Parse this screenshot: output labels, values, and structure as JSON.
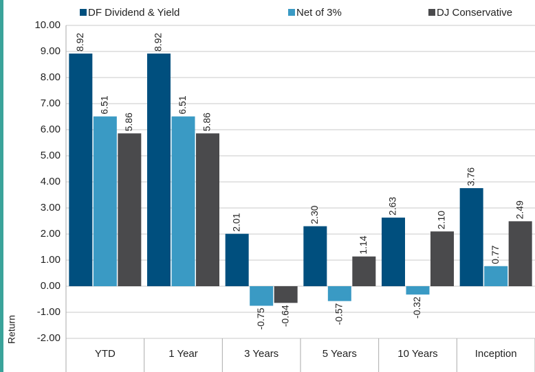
{
  "chart_data": {
    "type": "bar",
    "y_label": "Return",
    "categories": [
      "YTD",
      "1 Year",
      "3 Years",
      "5 Years",
      "10 Years",
      "Inception"
    ],
    "series": [
      {
        "name": "DF Dividend & Yield",
        "color": "#004f7e",
        "values": [
          8.92,
          8.92,
          2.01,
          2.3,
          2.63,
          3.76
        ],
        "value_labels": [
          "8.92",
          "8.92",
          "2.01",
          "2.30",
          "2.63",
          "3.76"
        ]
      },
      {
        "name": "Net of 3%",
        "color": "#3a9ac4",
        "values": [
          6.51,
          6.51,
          -0.75,
          -0.57,
          -0.32,
          0.77
        ],
        "value_labels": [
          "6.51",
          "6.51",
          "-0.75",
          "-0.57",
          "-0.32",
          "0.77"
        ]
      },
      {
        "name": "DJ Conservative",
        "color": "#4a4a4c",
        "values": [
          5.86,
          5.86,
          -0.64,
          1.14,
          2.1,
          2.49
        ],
        "value_labels": [
          "5.86",
          "5.86",
          "-0.64",
          "1.14",
          "2.10",
          "2.49"
        ]
      }
    ],
    "ylim": [
      -2,
      10
    ],
    "yticks": [
      {
        "value": -2,
        "label": "-2.00"
      },
      {
        "value": -1,
        "label": "-1.00"
      },
      {
        "value": 0,
        "label": "0.00"
      },
      {
        "value": 1,
        "label": "1.00"
      },
      {
        "value": 2,
        "label": "2.00"
      },
      {
        "value": 3,
        "label": "3.00"
      },
      {
        "value": 4,
        "label": "4.00"
      },
      {
        "value": 5,
        "label": "5.00"
      },
      {
        "value": 6,
        "label": "6.00"
      },
      {
        "value": 7,
        "label": "7.00"
      },
      {
        "value": 8,
        "label": "8.00"
      },
      {
        "value": 9,
        "label": "9.00"
      },
      {
        "value": 10,
        "label": "10.00"
      }
    ],
    "grid": true,
    "legend": "top"
  }
}
